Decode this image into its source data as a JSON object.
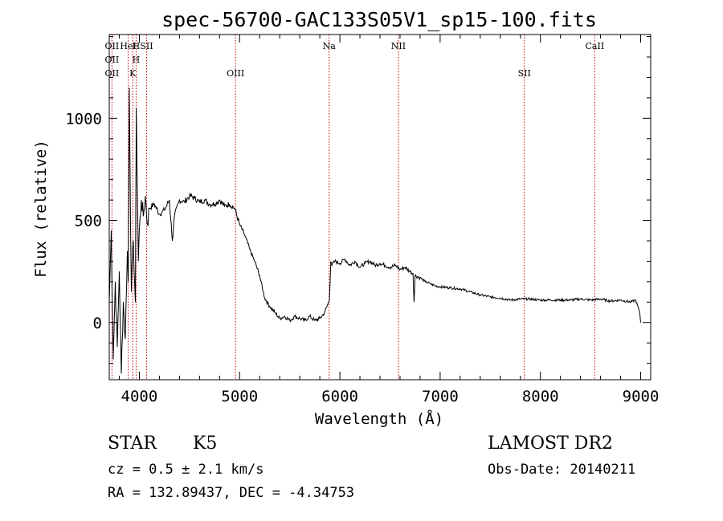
{
  "chart_data": {
    "type": "line",
    "title": "spec-56700-GAC133S05V1_sp15-100.fits",
    "xlabel": "Wavelength (Å)",
    "ylabel": "Flux (relative)",
    "xlim": [
      3700,
      9100
    ],
    "ylim": [
      -280,
      1410
    ],
    "x_ticks": [
      4000,
      5000,
      6000,
      7000,
      8000,
      9000
    ],
    "y_ticks": [
      0,
      500,
      1000
    ],
    "grid": false,
    "series": [
      {
        "x": [
          3700,
          3720,
          3740,
          3760,
          3780,
          3800,
          3820,
          3840,
          3860,
          3880,
          3890,
          3900,
          3920,
          3940,
          3960,
          3970,
          3990,
          4000,
          4020,
          4040,
          4060,
          4080,
          4100,
          4150,
          4200,
          4250,
          4300,
          4330,
          4350,
          4400,
          4450,
          4500,
          4550,
          4600,
          4650,
          4700,
          4750,
          4800,
          4850,
          4900,
          4950,
          5000,
          5050,
          5100,
          5150,
          5200,
          5250,
          5300,
          5350,
          5400,
          5450,
          5500,
          5550,
          5600,
          5650,
          5700,
          5750,
          5800,
          5850,
          5880,
          5895,
          5910,
          5920,
          5950,
          6000,
          6050,
          6100,
          6150,
          6200,
          6250,
          6300,
          6350,
          6400,
          6450,
          6500,
          6550,
          6600,
          6650,
          6700,
          6730,
          6740,
          6750,
          6800,
          6850,
          6900,
          6950,
          7000,
          7100,
          7200,
          7300,
          7400,
          7500,
          7600,
          7700,
          7800,
          7900,
          8000,
          8100,
          8200,
          8300,
          8400,
          8500,
          8600,
          8700,
          8800,
          8900,
          8950,
          8990,
          9000
        ],
        "y": [
          100,
          450,
          -180,
          200,
          -120,
          250,
          -250,
          100,
          -80,
          350,
          200,
          1150,
          150,
          400,
          100,
          1050,
          300,
          450,
          600,
          520,
          620,
          480,
          560,
          580,
          530,
          550,
          600,
          400,
          520,
          600,
          590,
          620,
          610,
          590,
          600,
          580,
          580,
          600,
          570,
          580,
          560,
          480,
          430,
          360,
          300,
          230,
          120,
          80,
          50,
          20,
          30,
          10,
          30,
          20,
          10,
          30,
          10,
          20,
          50,
          90,
          110,
          300,
          280,
          300,
          290,
          310,
          280,
          300,
          270,
          290,
          300,
          280,
          290,
          280,
          270,
          280,
          260,
          270,
          250,
          240,
          100,
          230,
          220,
          200,
          190,
          180,
          175,
          170,
          165,
          150,
          135,
          125,
          120,
          110,
          115,
          115,
          110,
          110,
          110,
          110,
          115,
          110,
          115,
          105,
          110,
          100,
          110,
          50,
          0
        ]
      }
    ],
    "lines_top": [
      {
        "label": "OII",
        "x": 3727
      },
      {
        "label": "HeI",
        "x": 3889
      },
      {
        "label": "H",
        "x": 3968
      },
      {
        "label": "SII",
        "x": 4072
      },
      {
        "label": "Na",
        "x": 5893
      },
      {
        "label": "NII",
        "x": 6584
      },
      {
        "label": "CaII",
        "x": 8542
      }
    ],
    "lines_bottom": [
      {
        "label": "OII",
        "x": 3727
      },
      {
        "label": "K",
        "x": 3934
      },
      {
        "label": "OIII",
        "x": 4959
      },
      {
        "label": "SII",
        "x": 7840
      }
    ],
    "line_color": "#cc0000"
  },
  "info": {
    "class": "STAR",
    "subclass": "K5",
    "cz": "cz = 0.5 ± 2.1 km/s",
    "coords": "RA = 132.89437, DEC =  -4.34753",
    "survey": "LAMOST DR2",
    "obs_date": "Obs-Date: 20140211"
  }
}
